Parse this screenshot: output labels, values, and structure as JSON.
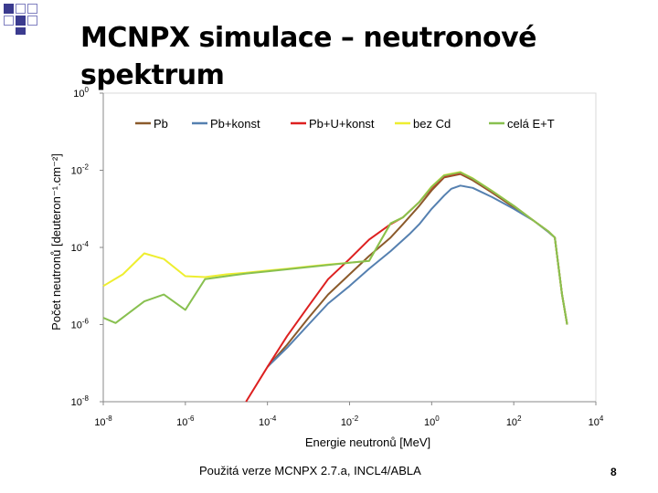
{
  "slide": {
    "title": "MCNPX simulace – neutronové spektrum",
    "footnote": "Použitá verze MCNPX 2.7.a, INCL4/ABLA",
    "page_number": "8"
  },
  "colors": {
    "deco_fill": "#3b3b8f",
    "deco_outline": "#8080c0"
  },
  "chart_data": {
    "type": "line",
    "xlabel": "Energie neutronů [MeV]",
    "ylabel": "Počet neutronů [deuteron⁻¹.cm⁻²]",
    "xscale": "log",
    "yscale": "log",
    "xlim": [
      1e-08,
      10000.0
    ],
    "ylim": [
      1e-08,
      1
    ],
    "x_ticks": [
      {
        "value": 1e-08,
        "base": "10",
        "exp": "-8"
      },
      {
        "value": 1e-06,
        "base": "10",
        "exp": "-6"
      },
      {
        "value": 0.0001,
        "base": "10",
        "exp": "-4"
      },
      {
        "value": 0.01,
        "base": "10",
        "exp": "-2"
      },
      {
        "value": 1,
        "base": "10",
        "exp": "0"
      },
      {
        "value": 100,
        "base": "10",
        "exp": "2"
      },
      {
        "value": 10000,
        "base": "10",
        "exp": "4"
      }
    ],
    "y_ticks": [
      {
        "value": 1,
        "base": "10",
        "exp": "0"
      },
      {
        "value": 0.01,
        "base": "10",
        "exp": "-2"
      },
      {
        "value": 0.0001,
        "base": "10",
        "exp": "-4"
      },
      {
        "value": 1e-06,
        "base": "10",
        "exp": "-6"
      },
      {
        "value": 1e-08,
        "base": "10",
        "exp": "-8"
      }
    ],
    "grid": false,
    "legend_position": "top",
    "series": [
      {
        "name": "Pb",
        "color": "#8b5a2b",
        "x": [
          0.0001,
          0.0003,
          0.001,
          0.003,
          0.01,
          0.03,
          0.1,
          0.2,
          0.5,
          1,
          2,
          5,
          10,
          30,
          100,
          300,
          700,
          1000,
          1500,
          2000
        ],
        "y": [
          8e-08,
          3e-07,
          1.5e-06,
          6e-06,
          2e-05,
          6e-05,
          0.00018,
          0.0004,
          0.0012,
          0.003,
          0.0065,
          0.008,
          0.0055,
          0.0026,
          0.0011,
          0.0005,
          0.00026,
          0.00018,
          6e-06,
          1e-06
        ]
      },
      {
        "name": "Pb+konst",
        "color": "#5580b0",
        "x": [
          0.0001,
          0.0003,
          0.001,
          0.003,
          0.01,
          0.03,
          0.1,
          0.3,
          0.5,
          1,
          2,
          3,
          5,
          10,
          30,
          100,
          300,
          700,
          1000,
          1500,
          2000
        ],
        "y": [
          8e-08,
          2.5e-07,
          1e-06,
          3.5e-06,
          1e-05,
          2.8e-05,
          8e-05,
          0.00023,
          0.0004,
          0.001,
          0.0022,
          0.0033,
          0.004,
          0.0035,
          0.002,
          0.001,
          0.0005,
          0.00025,
          0.00018,
          6e-06,
          1e-06
        ]
      },
      {
        "name": "Pb+U+konst",
        "color": "#dd2020",
        "x": [
          3e-05,
          0.0001,
          0.0003,
          0.001,
          0.003,
          0.01,
          0.03,
          0.1,
          0.2,
          0.5,
          1,
          2,
          5,
          10,
          30,
          100,
          300,
          700,
          1000,
          1500,
          2000
        ],
        "y": [
          1e-08,
          8e-08,
          5e-07,
          3e-06,
          1.5e-05,
          5e-05,
          0.00016,
          0.0004,
          0.0006,
          0.0015,
          0.0035,
          0.007,
          0.0085,
          0.006,
          0.0028,
          0.0012,
          0.0005,
          0.00026,
          0.00018,
          6e-06,
          1e-06
        ]
      },
      {
        "name": "bez Cd",
        "color": "#eeee30",
        "x": [
          1e-08,
          3e-08,
          1e-07,
          3e-07,
          1e-06,
          3e-06,
          1e-05,
          3e-05,
          0.0001,
          0.0003,
          0.001,
          0.003,
          0.01,
          0.03,
          0.1,
          0.2,
          0.5,
          1,
          2,
          5,
          10,
          30,
          100,
          300,
          700,
          1000,
          1500,
          2000
        ],
        "y": [
          1e-05,
          2e-05,
          7e-05,
          5e-05,
          1.8e-05,
          1.7e-05,
          2e-05,
          2.2e-05,
          2.5e-05,
          2.8e-05,
          3.2e-05,
          3.6e-05,
          4e-05,
          4.5e-05,
          0.00042,
          0.0006,
          0.0015,
          0.0038,
          0.0075,
          0.009,
          0.0062,
          0.0029,
          0.0012,
          0.0005,
          0.00026,
          0.00018,
          6e-06,
          1e-06
        ]
      },
      {
        "name": "celá E+T",
        "color": "#88c050",
        "x": [
          1e-08,
          2e-08,
          1e-07,
          3e-07,
          1e-06,
          3e-06,
          1e-05,
          3e-05,
          0.0001,
          0.0003,
          0.001,
          0.003,
          0.01,
          0.03,
          0.1,
          0.2,
          0.5,
          1,
          2,
          5,
          10,
          30,
          100,
          300,
          700,
          1000,
          1500,
          2000
        ],
        "y": [
          1.5e-06,
          1.1e-06,
          4e-06,
          6e-06,
          2.4e-06,
          1.5e-05,
          1.8e-05,
          2.1e-05,
          2.4e-05,
          2.7e-05,
          3.1e-05,
          3.5e-05,
          4e-05,
          4.5e-05,
          0.00042,
          0.0006,
          0.0015,
          0.0037,
          0.0073,
          0.0088,
          0.0061,
          0.00285,
          0.0012,
          0.0005,
          0.00026,
          0.00018,
          6e-06,
          1e-06
        ]
      }
    ]
  }
}
